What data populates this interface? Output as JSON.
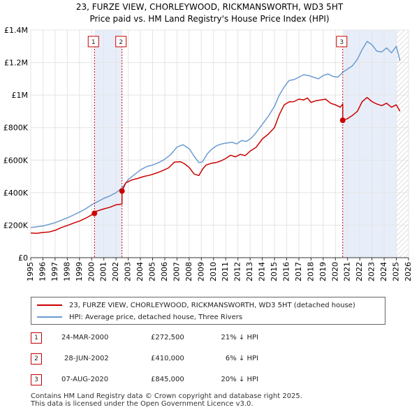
{
  "chart_data": {
    "type": "line",
    "title": "23, FURZE VIEW, CHORLEYWOOD, RICKMANSWORTH, WD3 5HT",
    "subtitle": "Price paid vs. HM Land Registry's House Price Index (HPI)",
    "xlim": [
      1995,
      2026
    ],
    "ylim": [
      0,
      1400000
    ],
    "x_ticks": [
      1995,
      1996,
      1997,
      1998,
      1999,
      2000,
      2001,
      2002,
      2003,
      2004,
      2005,
      2006,
      2007,
      2008,
      2009,
      2010,
      2011,
      2012,
      2013,
      2014,
      2015,
      2016,
      2017,
      2018,
      2019,
      2020,
      2021,
      2022,
      2023,
      2024,
      2025,
      2026
    ],
    "x_tick_labels": [
      "1995",
      "1996",
      "1997",
      "1998",
      "1999",
      "2000",
      "2001",
      "2002",
      "2003",
      "2004",
      "2005",
      "2006",
      "2007",
      "2008",
      "2009",
      "2010",
      "2011",
      "2012",
      "2013",
      "2014",
      "2015",
      "2016",
      "2017",
      "2018",
      "2019",
      "2020",
      "2021",
      "2022",
      "2023",
      "2024",
      "2025",
      "2026"
    ],
    "y_ticks": [
      0,
      200000,
      400000,
      600000,
      800000,
      1000000,
      1200000,
      1400000
    ],
    "y_tick_labels": [
      "£0",
      "£200K",
      "£400K",
      "£600K",
      "£800K",
      "£1M",
      "£1.2M",
      "£1.4M"
    ],
    "grid": true,
    "series": [
      {
        "name": "23, FURZE VIEW, CHORLEYWOOD, RICKMANSWORTH, WD3 5HT (detached house)",
        "color": "#cc0000",
        "x": [
          1995.0,
          1995.5,
          1996.0,
          1996.5,
          1997.0,
          1997.5,
          1998.0,
          1998.5,
          1999.0,
          1999.5,
          2000.23,
          2000.23,
          2000.5,
          2001.0,
          2001.5,
          2002.0,
          2002.49,
          2002.49,
          2002.8,
          2003.3,
          2003.8,
          2004.3,
          2004.8,
          2005.3,
          2005.8,
          2006.3,
          2006.8,
          2007.3,
          2007.6,
          2008.0,
          2008.4,
          2008.8,
          2009.1,
          2009.4,
          2009.8,
          2010.2,
          2010.6,
          2011.0,
          2011.4,
          2011.8,
          2012.2,
          2012.6,
          2013.0,
          2013.5,
          2014.0,
          2014.5,
          2015.0,
          2015.4,
          2015.8,
          2016.2,
          2016.6,
          2017.0,
          2017.4,
          2017.7,
          2018.0,
          2018.4,
          2018.8,
          2019.2,
          2019.6,
          2020.0,
          2020.4,
          2020.6,
          2020.6,
          2021.0,
          2021.4,
          2021.8,
          2022.2,
          2022.6,
          2023.0,
          2023.4,
          2023.8,
          2024.2,
          2024.6,
          2025.0,
          2025.3
        ],
        "y": [
          152000,
          150000,
          155000,
          158000,
          168000,
          185000,
          198000,
          212000,
          225000,
          242000,
          272500,
          282000,
          288000,
          300000,
          310000,
          325000,
          330000,
          410000,
          460000,
          478000,
          488000,
          500000,
          508000,
          520000,
          535000,
          552000,
          588000,
          590000,
          578000,
          555000,
          515000,
          505000,
          545000,
          570000,
          580000,
          585000,
          595000,
          610000,
          630000,
          620000,
          635000,
          628000,
          655000,
          680000,
          730000,
          760000,
          800000,
          880000,
          940000,
          958000,
          960000,
          975000,
          970000,
          982000,
          955000,
          965000,
          970000,
          975000,
          950000,
          940000,
          925000,
          945000,
          845000,
          855000,
          875000,
          900000,
          960000,
          985000,
          960000,
          945000,
          935000,
          950000,
          925000,
          940000,
          900000
        ]
      },
      {
        "name": "HPI: Average price, detached house, Three Rivers",
        "color": "#6b9bd1",
        "x": [
          1995.0,
          1995.5,
          1996.0,
          1996.5,
          1997.0,
          1997.5,
          1998.0,
          1998.5,
          1999.0,
          1999.5,
          2000.0,
          2000.5,
          2001.0,
          2001.5,
          2002.0,
          2002.5,
          2003.0,
          2003.5,
          2004.0,
          2004.5,
          2005.0,
          2005.5,
          2006.0,
          2006.5,
          2007.0,
          2007.5,
          2008.0,
          2008.4,
          2008.8,
          2009.1,
          2009.5,
          2009.9,
          2010.3,
          2010.7,
          2011.1,
          2011.5,
          2011.9,
          2012.3,
          2012.7,
          2013.1,
          2013.5,
          2014.0,
          2014.5,
          2015.0,
          2015.4,
          2015.8,
          2016.2,
          2016.6,
          2017.0,
          2017.4,
          2017.8,
          2018.2,
          2018.6,
          2019.0,
          2019.4,
          2019.8,
          2020.2,
          2020.6,
          2021.0,
          2021.4,
          2021.8,
          2022.2,
          2022.6,
          2023.0,
          2023.4,
          2023.8,
          2024.2,
          2024.6,
          2025.0,
          2025.3
        ],
        "y": [
          185000,
          190000,
          195000,
          205000,
          215000,
          230000,
          245000,
          262000,
          280000,
          300000,
          325000,
          345000,
          365000,
          380000,
          400000,
          430000,
          480000,
          510000,
          540000,
          560000,
          570000,
          585000,
          605000,
          635000,
          680000,
          695000,
          670000,
          625000,
          585000,
          590000,
          640000,
          670000,
          690000,
          700000,
          705000,
          710000,
          700000,
          720000,
          715000,
          735000,
          770000,
          820000,
          870000,
          930000,
          1000000,
          1050000,
          1090000,
          1095000,
          1110000,
          1125000,
          1120000,
          1110000,
          1100000,
          1120000,
          1130000,
          1115000,
          1110000,
          1140000,
          1160000,
          1180000,
          1220000,
          1280000,
          1330000,
          1310000,
          1270000,
          1265000,
          1290000,
          1260000,
          1300000,
          1210000
        ]
      }
    ],
    "markers": [
      {
        "label": "1",
        "x": 2000.23,
        "y": 272500
      },
      {
        "label": "2",
        "x": 2002.49,
        "y": 410000
      },
      {
        "label": "3",
        "x": 2020.6,
        "y": 845000
      }
    ],
    "shaded_ranges": [
      [
        2000.23,
        2002.49
      ],
      [
        2020.6,
        2025.0
      ]
    ],
    "hatched_from": 2025.0
  },
  "legend": {
    "items": [
      {
        "label": "23, FURZE VIEW, CHORLEYWOOD, RICKMANSWORTH, WD3 5HT (detached house)",
        "color": "#cc0000"
      },
      {
        "label": "HPI: Average price, detached house, Three Rivers",
        "color": "#6b9bd1"
      }
    ]
  },
  "sales": [
    {
      "num": "1",
      "date": "24-MAR-2000",
      "price": "£272,500",
      "hpi": "21% ↓ HPI"
    },
    {
      "num": "2",
      "date": "28-JUN-2002",
      "price": "£410,000",
      "hpi": "6% ↓ HPI"
    },
    {
      "num": "3",
      "date": "07-AUG-2020",
      "price": "£845,000",
      "hpi": "20% ↓ HPI"
    }
  ],
  "footer": {
    "line1": "Contains HM Land Registry data © Crown copyright and database right 2025.",
    "line2": "This data is licensed under the Open Government Licence v3.0."
  }
}
